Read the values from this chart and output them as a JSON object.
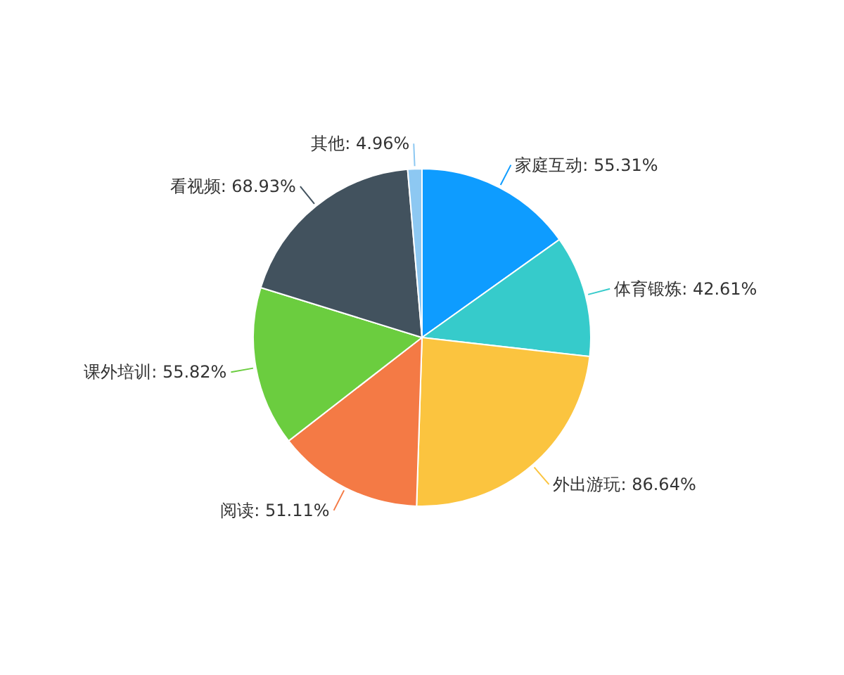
{
  "chart_data": {
    "type": "pie",
    "categories": [
      "家庭互动",
      "体育锻炼",
      "外出游玩",
      "阅读",
      "课外培训",
      "看视频",
      "其他"
    ],
    "values": [
      55.31,
      42.61,
      86.64,
      51.11,
      55.82,
      68.93,
      4.96
    ],
    "value_labels": [
      "55.31%",
      "42.61%",
      "86.64%",
      "51.11%",
      "55.82%",
      "68.93%",
      "4.96%"
    ],
    "colors": [
      "#0e9cff",
      "#36cbcb",
      "#fbc43f",
      "#f47a45",
      "#6bcd3f",
      "#42525e",
      "#8dc8f2"
    ]
  }
}
